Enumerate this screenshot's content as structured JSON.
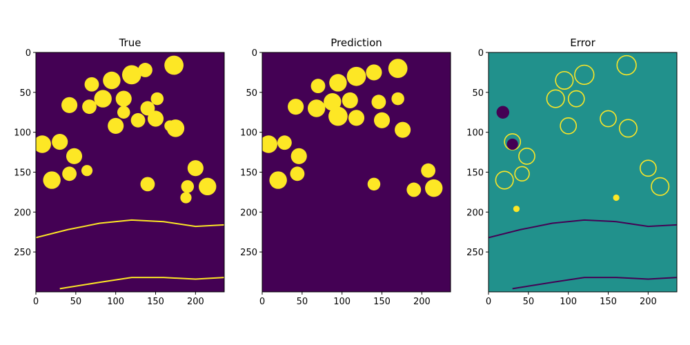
{
  "colors": {
    "background": "#440154",
    "foreground": "#fde725",
    "neutral": "#21918c",
    "axis": "#000000"
  },
  "chart_data": [
    {
      "type": "heatmap",
      "title": "True",
      "xlabel": "",
      "ylabel": "",
      "xlim": [
        0,
        236
      ],
      "ylim": [
        300,
        0
      ],
      "x_ticks": [
        0,
        50,
        100,
        150,
        200
      ],
      "y_ticks": [
        0,
        50,
        100,
        150,
        200,
        250
      ],
      "background_value": 0,
      "circles": [
        {
          "x": 173,
          "y": 16,
          "r": 12,
          "value": 1
        },
        {
          "x": 137,
          "y": 22,
          "r": 9,
          "value": 1
        },
        {
          "x": 120,
          "y": 28,
          "r": 12,
          "value": 1
        },
        {
          "x": 95,
          "y": 35,
          "r": 11,
          "value": 1
        },
        {
          "x": 70,
          "y": 40,
          "r": 9,
          "value": 1
        },
        {
          "x": 42,
          "y": 66,
          "r": 10,
          "value": 1
        },
        {
          "x": 67,
          "y": 68,
          "r": 9,
          "value": 1
        },
        {
          "x": 84,
          "y": 58,
          "r": 11,
          "value": 1
        },
        {
          "x": 110,
          "y": 58,
          "r": 10,
          "value": 1
        },
        {
          "x": 152,
          "y": 58,
          "r": 8,
          "value": 1
        },
        {
          "x": 140,
          "y": 70,
          "r": 9,
          "value": 1
        },
        {
          "x": 110,
          "y": 75,
          "r": 8,
          "value": 1
        },
        {
          "x": 100,
          "y": 92,
          "r": 10,
          "value": 1
        },
        {
          "x": 128,
          "y": 85,
          "r": 9,
          "value": 1
        },
        {
          "x": 150,
          "y": 83,
          "r": 10,
          "value": 1
        },
        {
          "x": 175,
          "y": 95,
          "r": 11,
          "value": 1
        },
        {
          "x": 168,
          "y": 92,
          "r": 7,
          "value": 1
        },
        {
          "x": 30,
          "y": 112,
          "r": 10,
          "value": 1
        },
        {
          "x": 48,
          "y": 130,
          "r": 10,
          "value": 1
        },
        {
          "x": 8,
          "y": 115,
          "r": 11,
          "value": 1
        },
        {
          "x": 20,
          "y": 160,
          "r": 11,
          "value": 1
        },
        {
          "x": 42,
          "y": 152,
          "r": 9,
          "value": 1
        },
        {
          "x": 64,
          "y": 148,
          "r": 7,
          "value": 1
        },
        {
          "x": 140,
          "y": 165,
          "r": 9,
          "value": 1
        },
        {
          "x": 200,
          "y": 145,
          "r": 10,
          "value": 1
        },
        {
          "x": 215,
          "y": 168,
          "r": 11,
          "value": 1
        },
        {
          "x": 190,
          "y": 168,
          "r": 8,
          "value": 1
        },
        {
          "x": 188,
          "y": 182,
          "r": 7,
          "value": 1
        }
      ],
      "streaks": [
        {
          "x": [
            0,
            40,
            80,
            120,
            160,
            200,
            236
          ],
          "y": [
            232,
            222,
            214,
            210,
            212,
            218,
            216
          ],
          "value": 1
        },
        {
          "x": [
            30,
            80,
            120,
            160,
            200,
            236
          ],
          "y": [
            296,
            288,
            282,
            282,
            284,
            282
          ],
          "value": 1
        }
      ]
    },
    {
      "type": "heatmap",
      "title": "Prediction",
      "xlabel": "",
      "ylabel": "",
      "xlim": [
        0,
        236
      ],
      "ylim": [
        300,
        0
      ],
      "x_ticks": [
        0,
        50,
        100,
        150,
        200
      ],
      "y_ticks": [
        0,
        50,
        100,
        150,
        200,
        250
      ],
      "background_value": 0,
      "circles": [
        {
          "x": 170,
          "y": 20,
          "r": 12,
          "value": 1
        },
        {
          "x": 140,
          "y": 25,
          "r": 10,
          "value": 1
        },
        {
          "x": 118,
          "y": 30,
          "r": 12,
          "value": 1
        },
        {
          "x": 95,
          "y": 38,
          "r": 11,
          "value": 1
        },
        {
          "x": 70,
          "y": 42,
          "r": 9,
          "value": 1
        },
        {
          "x": 42,
          "y": 68,
          "r": 10,
          "value": 1
        },
        {
          "x": 68,
          "y": 70,
          "r": 11,
          "value": 1
        },
        {
          "x": 88,
          "y": 62,
          "r": 11,
          "value": 1
        },
        {
          "x": 110,
          "y": 60,
          "r": 10,
          "value": 1
        },
        {
          "x": 95,
          "y": 80,
          "r": 12,
          "value": 1
        },
        {
          "x": 118,
          "y": 82,
          "r": 10,
          "value": 1
        },
        {
          "x": 146,
          "y": 62,
          "r": 9,
          "value": 1
        },
        {
          "x": 150,
          "y": 85,
          "r": 10,
          "value": 1
        },
        {
          "x": 176,
          "y": 97,
          "r": 10,
          "value": 1
        },
        {
          "x": 170,
          "y": 58,
          "r": 8,
          "value": 1
        },
        {
          "x": 8,
          "y": 115,
          "r": 11,
          "value": 1
        },
        {
          "x": 28,
          "y": 113,
          "r": 9,
          "value": 1
        },
        {
          "x": 46,
          "y": 130,
          "r": 10,
          "value": 1
        },
        {
          "x": 20,
          "y": 160,
          "r": 11,
          "value": 1
        },
        {
          "x": 44,
          "y": 152,
          "r": 9,
          "value": 1
        },
        {
          "x": 140,
          "y": 165,
          "r": 8,
          "value": 1
        },
        {
          "x": 208,
          "y": 148,
          "r": 9,
          "value": 1
        },
        {
          "x": 215,
          "y": 170,
          "r": 11,
          "value": 1
        },
        {
          "x": 190,
          "y": 172,
          "r": 9,
          "value": 1
        }
      ],
      "streaks": []
    },
    {
      "type": "heatmap",
      "title": "Error",
      "xlabel": "",
      "ylabel": "",
      "xlim": [
        0,
        236
      ],
      "ylim": [
        300,
        0
      ],
      "x_ticks": [
        0,
        50,
        100,
        150,
        200
      ],
      "y_ticks": [
        0,
        50,
        100,
        150,
        200,
        250
      ],
      "background_value": 0.5,
      "circles": [
        {
          "x": 173,
          "y": 16,
          "r": 12,
          "value": 1,
          "ring": true
        },
        {
          "x": 120,
          "y": 28,
          "r": 12,
          "value": 1,
          "ring": true
        },
        {
          "x": 95,
          "y": 35,
          "r": 11,
          "value": 1,
          "ring": true
        },
        {
          "x": 84,
          "y": 58,
          "r": 11,
          "value": 1,
          "ring": true
        },
        {
          "x": 110,
          "y": 58,
          "r": 10,
          "value": 1,
          "ring": true
        },
        {
          "x": 150,
          "y": 83,
          "r": 10,
          "value": 1,
          "ring": true
        },
        {
          "x": 175,
          "y": 95,
          "r": 11,
          "value": 1,
          "ring": true
        },
        {
          "x": 100,
          "y": 92,
          "r": 10,
          "value": 1,
          "ring": true
        },
        {
          "x": 30,
          "y": 112,
          "r": 10,
          "value": 1,
          "ring": true
        },
        {
          "x": 48,
          "y": 130,
          "r": 10,
          "value": 1,
          "ring": true
        },
        {
          "x": 20,
          "y": 160,
          "r": 11,
          "value": 1,
          "ring": true
        },
        {
          "x": 42,
          "y": 152,
          "r": 9,
          "value": 1,
          "ring": true
        },
        {
          "x": 200,
          "y": 145,
          "r": 10,
          "value": 1,
          "ring": true
        },
        {
          "x": 215,
          "y": 168,
          "r": 11,
          "value": 1,
          "ring": true
        },
        {
          "x": 18,
          "y": 75,
          "r": 8,
          "value": 0
        },
        {
          "x": 30,
          "y": 115,
          "r": 7,
          "value": 0
        },
        {
          "x": 35,
          "y": 196,
          "r": 4,
          "value": 1
        },
        {
          "x": 160,
          "y": 182,
          "r": 4,
          "value": 1
        }
      ],
      "streaks": [
        {
          "x": [
            0,
            40,
            80,
            120,
            160,
            200,
            236
          ],
          "y": [
            232,
            222,
            214,
            210,
            212,
            218,
            216
          ],
          "value": 0
        },
        {
          "x": [
            30,
            80,
            120,
            160,
            200,
            236
          ],
          "y": [
            296,
            288,
            282,
            282,
            284,
            282
          ],
          "value": 0
        }
      ]
    }
  ]
}
